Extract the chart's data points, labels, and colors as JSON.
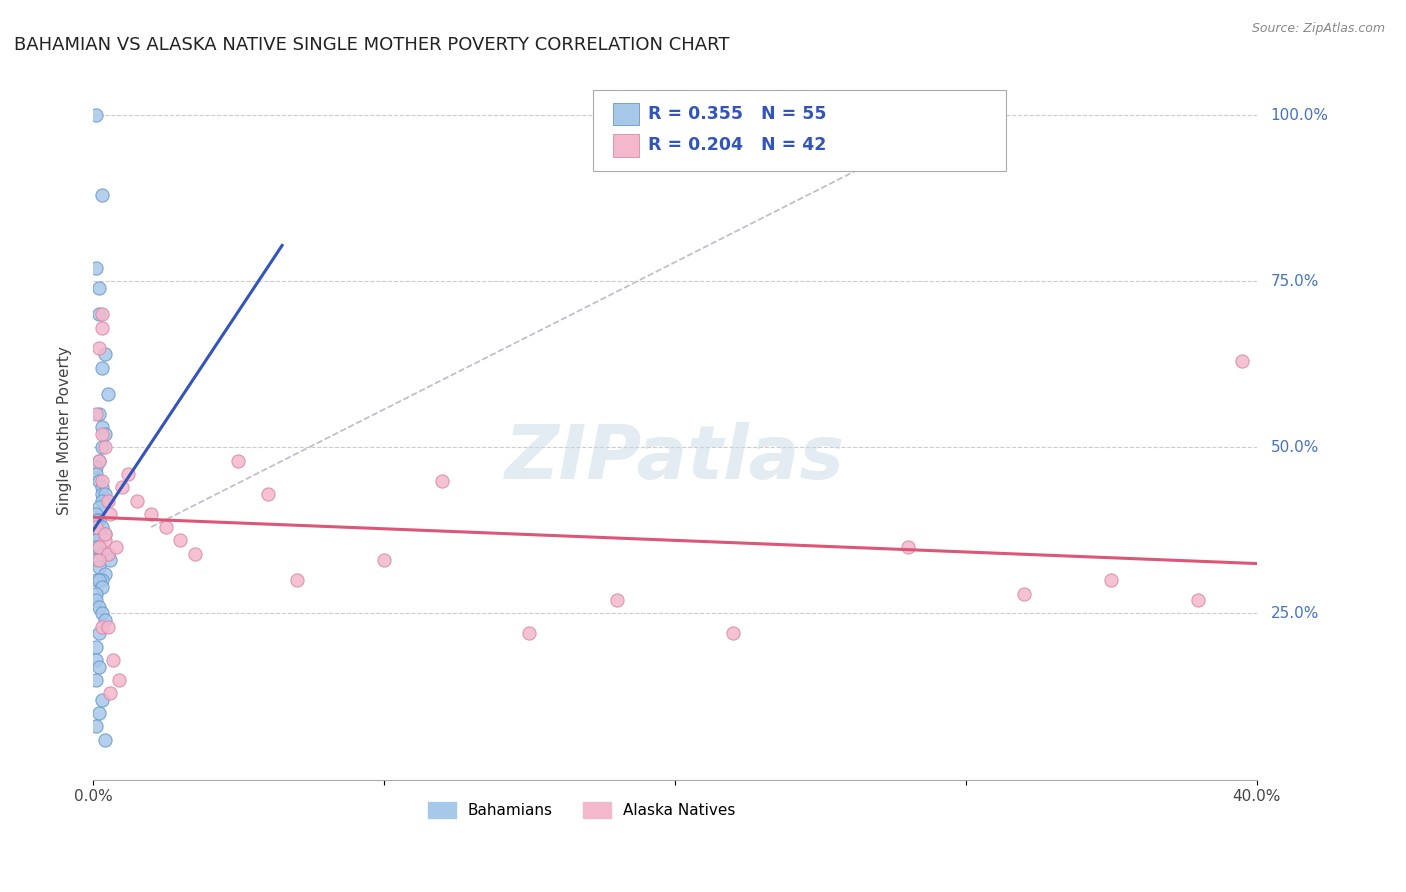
{
  "title": "BAHAMIAN VS ALASKA NATIVE SINGLE MOTHER POVERTY CORRELATION CHART",
  "source": "Source: ZipAtlas.com",
  "ylabel": "Single Mother Poverty",
  "bahamian_color": "#a8c8ea",
  "bahamian_edge": "#6699cc",
  "alaska_color": "#f4b8cc",
  "alaska_edge": "#dd88aa",
  "bahamian_line_color": "#3355bb",
  "alaska_line_color": "#dd5577",
  "diagonal_color": "#bbbbcc",
  "watermark": "ZIPatlas",
  "legend_line1": "R = 0.355   N = 55",
  "legend_line2": "R = 0.204   N = 42",
  "xmin": 0.0,
  "xmax": 0.4,
  "ymin": 0.0,
  "ymax": 1.05,
  "bah_x": [
    0.001,
    0.003,
    0.001,
    0.002,
    0.002,
    0.004,
    0.003,
    0.005,
    0.002,
    0.003,
    0.004,
    0.003,
    0.002,
    0.001,
    0.001,
    0.002,
    0.003,
    0.003,
    0.004,
    0.003,
    0.002,
    0.001,
    0.002,
    0.001,
    0.003,
    0.004,
    0.002,
    0.001,
    0.001,
    0.001,
    0.002,
    0.003,
    0.005,
    0.006,
    0.001,
    0.002,
    0.004,
    0.003,
    0.001,
    0.002,
    0.003,
    0.001,
    0.001,
    0.002,
    0.003,
    0.004,
    0.002,
    0.001,
    0.001,
    0.002,
    0.001,
    0.003,
    0.002,
    0.001,
    0.004
  ],
  "bah_y": [
    1.0,
    0.88,
    0.77,
    0.74,
    0.7,
    0.64,
    0.62,
    0.58,
    0.55,
    0.53,
    0.52,
    0.5,
    0.48,
    0.47,
    0.46,
    0.45,
    0.44,
    0.43,
    0.43,
    0.42,
    0.41,
    0.4,
    0.39,
    0.39,
    0.38,
    0.37,
    0.37,
    0.36,
    0.36,
    0.35,
    0.35,
    0.34,
    0.34,
    0.33,
    0.33,
    0.32,
    0.31,
    0.3,
    0.3,
    0.3,
    0.29,
    0.28,
    0.27,
    0.26,
    0.25,
    0.24,
    0.22,
    0.2,
    0.18,
    0.17,
    0.15,
    0.12,
    0.1,
    0.08,
    0.06
  ],
  "ala_x": [
    0.001,
    0.002,
    0.003,
    0.002,
    0.004,
    0.003,
    0.005,
    0.006,
    0.001,
    0.003,
    0.004,
    0.002,
    0.005,
    0.003,
    0.01,
    0.012,
    0.015,
    0.02,
    0.025,
    0.03,
    0.035,
    0.05,
    0.06,
    0.07,
    0.1,
    0.12,
    0.15,
    0.18,
    0.22,
    0.28,
    0.32,
    0.35,
    0.38,
    0.395,
    0.002,
    0.003,
    0.004,
    0.005,
    0.006,
    0.008,
    0.009,
    0.007
  ],
  "ala_y": [
    0.55,
    0.48,
    0.52,
    0.65,
    0.5,
    0.45,
    0.42,
    0.4,
    0.38,
    0.7,
    0.36,
    0.35,
    0.34,
    0.68,
    0.44,
    0.46,
    0.42,
    0.4,
    0.38,
    0.36,
    0.34,
    0.48,
    0.43,
    0.3,
    0.33,
    0.45,
    0.22,
    0.27,
    0.22,
    0.35,
    0.28,
    0.3,
    0.27,
    0.63,
    0.33,
    0.23,
    0.37,
    0.23,
    0.13,
    0.35,
    0.15,
    0.18
  ]
}
